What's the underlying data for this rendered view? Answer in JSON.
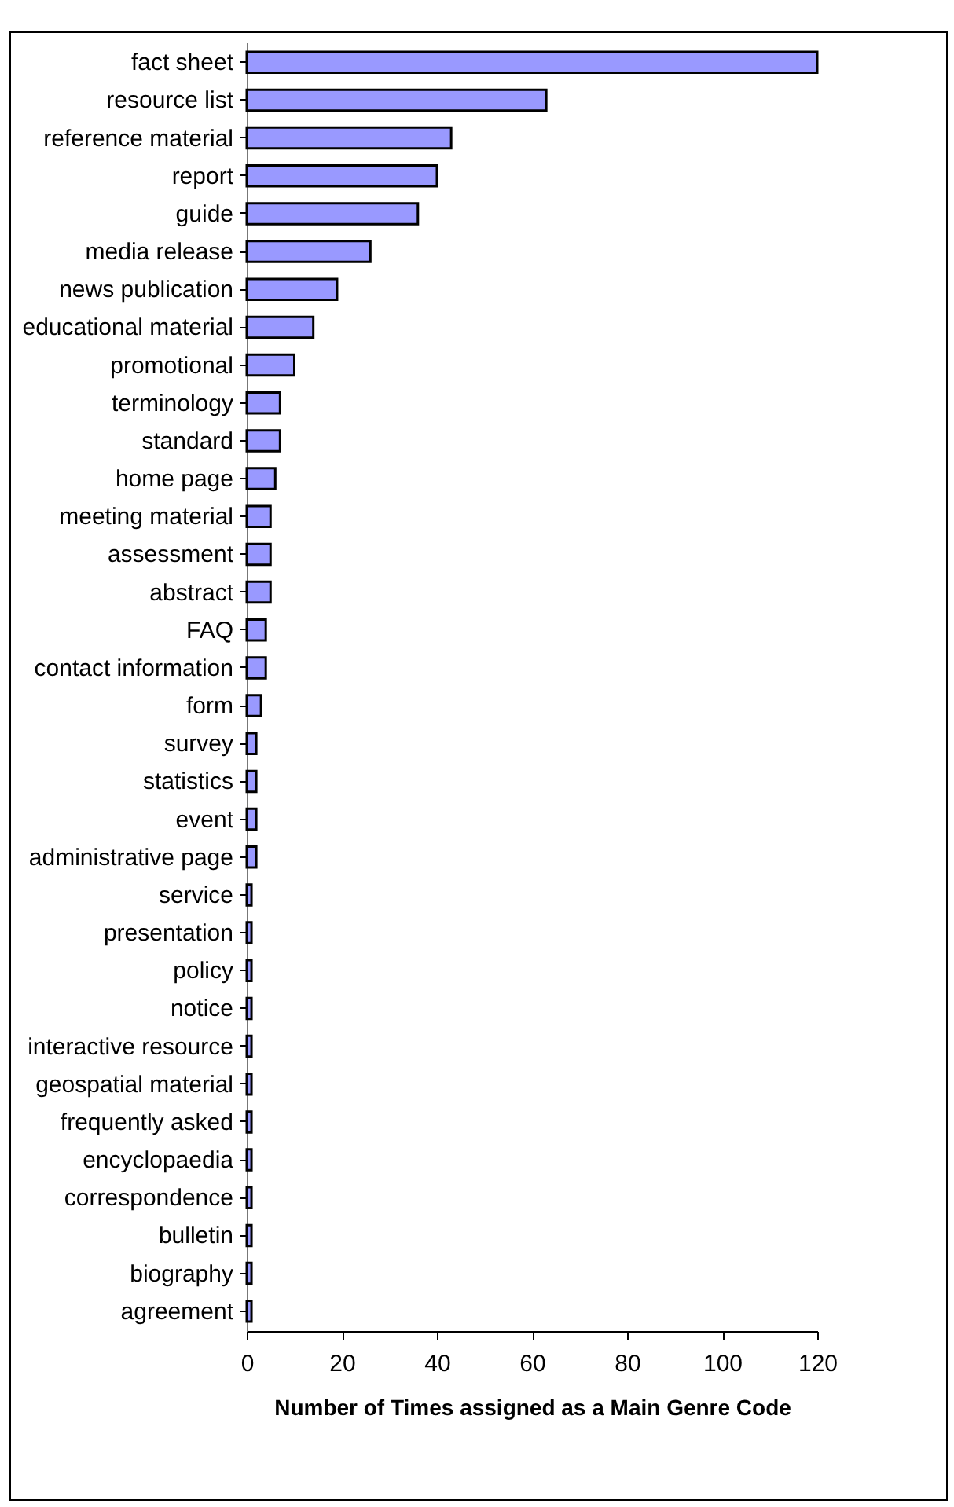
{
  "chart_data": {
    "type": "bar",
    "orientation": "horizontal",
    "xlabel": "Number of Times assigned as a Main Genre Code",
    "categories": [
      "fact sheet",
      "resource list",
      "reference material",
      "report",
      "guide",
      "media release",
      "news publication",
      "educational material",
      "promotional",
      "terminology",
      "standard",
      "home page",
      "meeting material",
      "assessment",
      "abstract",
      "FAQ",
      "contact information",
      "form",
      "survey",
      "statistics",
      "event",
      "administrative page",
      "service",
      "presentation",
      "policy",
      "notice",
      "interactive resource",
      "geospatial material",
      "frequently asked",
      "encyclopaedia",
      "correspondence",
      "bulletin",
      "biography",
      "agreement"
    ],
    "values": [
      120,
      63,
      43,
      40,
      36,
      26,
      19,
      14,
      10,
      7,
      7,
      6,
      5,
      5,
      5,
      4,
      4,
      3,
      2,
      2,
      2,
      2,
      1,
      1,
      1,
      1,
      1,
      1,
      1,
      1,
      1,
      1,
      1,
      1
    ],
    "color": "#9999ff",
    "xlim": [
      0,
      120
    ],
    "xticks": [
      0,
      20,
      40,
      60,
      80,
      100,
      120
    ],
    "grid": false
  }
}
